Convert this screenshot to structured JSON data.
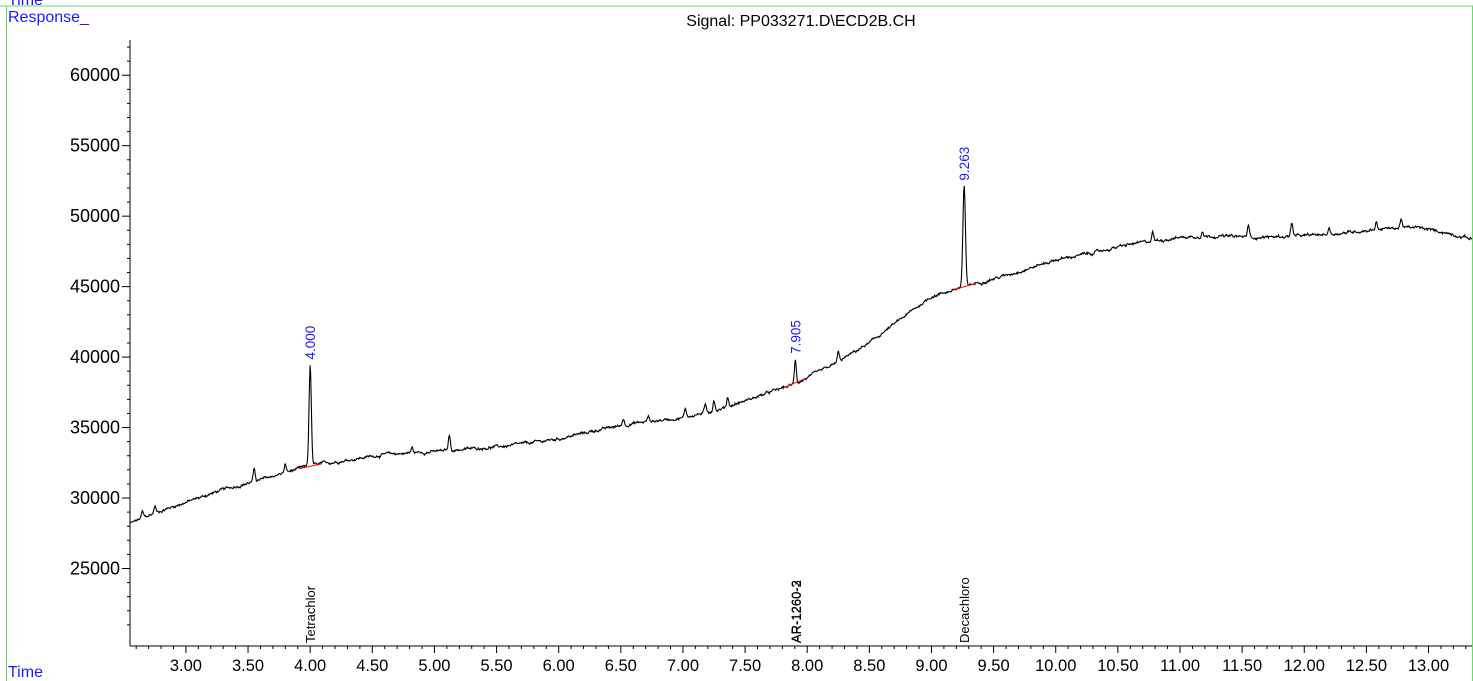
{
  "chart_data": {
    "type": "line",
    "title": "Signal: PP033271.D\\ECD2B.CH",
    "ylabel": "Response_",
    "xlabel": "Time",
    "xlim": [
      2.55,
      13.35
    ],
    "ylim": [
      19500,
      62500
    ],
    "x_ticks": [
      3.0,
      3.5,
      4.0,
      4.5,
      5.0,
      5.5,
      6.0,
      6.5,
      7.0,
      7.5,
      8.0,
      8.5,
      9.0,
      9.5,
      10.0,
      10.5,
      11.0,
      11.5,
      12.0,
      12.5,
      13.0
    ],
    "x_tick_labels": [
      "3.00",
      "3.50",
      "4.00",
      "4.50",
      "5.00",
      "5.50",
      "6.00",
      "6.50",
      "7.00",
      "7.50",
      "8.00",
      "8.50",
      "9.00",
      "9.50",
      "10.00",
      "10.50",
      "11.00",
      "11.50",
      "12.00",
      "12.50",
      "13.00"
    ],
    "y_ticks": [
      25000,
      30000,
      35000,
      40000,
      45000,
      50000,
      55000,
      60000
    ],
    "y_tick_labels": [
      "25000",
      "30000",
      "35000",
      "40000",
      "45000",
      "50000",
      "55000",
      "60000"
    ],
    "baseline": {
      "x": [
        2.55,
        2.8,
        3.0,
        3.3,
        3.6,
        4.0,
        4.3,
        4.6,
        5.0,
        5.3,
        5.6,
        6.0,
        6.3,
        6.6,
        7.0,
        7.3,
        7.6,
        7.9,
        8.2,
        8.5,
        8.8,
        9.0,
        9.3,
        9.6,
        10.0,
        10.3,
        10.6,
        11.0,
        11.3,
        11.6,
        12.0,
        12.3,
        12.6,
        12.9,
        13.1,
        13.35
      ],
      "y": [
        28200,
        29100,
        29700,
        30600,
        31300,
        32300,
        32700,
        33100,
        33300,
        33500,
        33700,
        34200,
        34800,
        35300,
        35700,
        36300,
        37200,
        38100,
        39400,
        41000,
        43000,
        44300,
        45100,
        45800,
        46900,
        47400,
        48000,
        48500,
        48600,
        48500,
        48600,
        48800,
        49100,
        49200,
        48900,
        48400
      ]
    },
    "peaks": [
      {
        "rt": 4.0,
        "label": "4.000",
        "apex": 39400,
        "width": 0.022
      },
      {
        "rt": 7.905,
        "label": "7.905",
        "apex": 39800,
        "width": 0.018
      },
      {
        "rt": 9.263,
        "label": "9.263",
        "apex": 52100,
        "width": 0.024
      }
    ],
    "minor_peaks": [
      {
        "rt": 2.65,
        "height": 450
      },
      {
        "rt": 2.75,
        "height": 500
      },
      {
        "rt": 3.55,
        "height": 850
      },
      {
        "rt": 3.8,
        "height": 550
      },
      {
        "rt": 4.82,
        "height": 350
      },
      {
        "rt": 5.12,
        "height": 1050
      },
      {
        "rt": 6.52,
        "height": 450
      },
      {
        "rt": 6.72,
        "height": 350
      },
      {
        "rt": 7.02,
        "height": 600
      },
      {
        "rt": 7.18,
        "height": 500
      },
      {
        "rt": 7.25,
        "height": 800
      },
      {
        "rt": 7.36,
        "height": 700
      },
      {
        "rt": 8.25,
        "height": 650
      },
      {
        "rt": 10.78,
        "height": 650
      },
      {
        "rt": 11.18,
        "height": 450
      },
      {
        "rt": 11.55,
        "height": 800
      },
      {
        "rt": 11.9,
        "height": 1000
      },
      {
        "rt": 12.2,
        "height": 450
      },
      {
        "rt": 12.58,
        "height": 500
      },
      {
        "rt": 12.78,
        "height": 700
      }
    ],
    "compound_markers": [
      {
        "x": 4.0,
        "label": "Tetrachlor"
      },
      {
        "x": 7.905,
        "label": "AR-1260-3"
      },
      {
        "x": 7.91,
        "label": "AR-1260-2"
      },
      {
        "x": 9.263,
        "label": "Decachloro"
      }
    ],
    "colors": {
      "trace": "#000000",
      "axis_labels": "#1a1aff",
      "baseline_marks": "#ff0000",
      "frame": "#66dd66"
    }
  },
  "header": {
    "top_fragment": "Time"
  }
}
